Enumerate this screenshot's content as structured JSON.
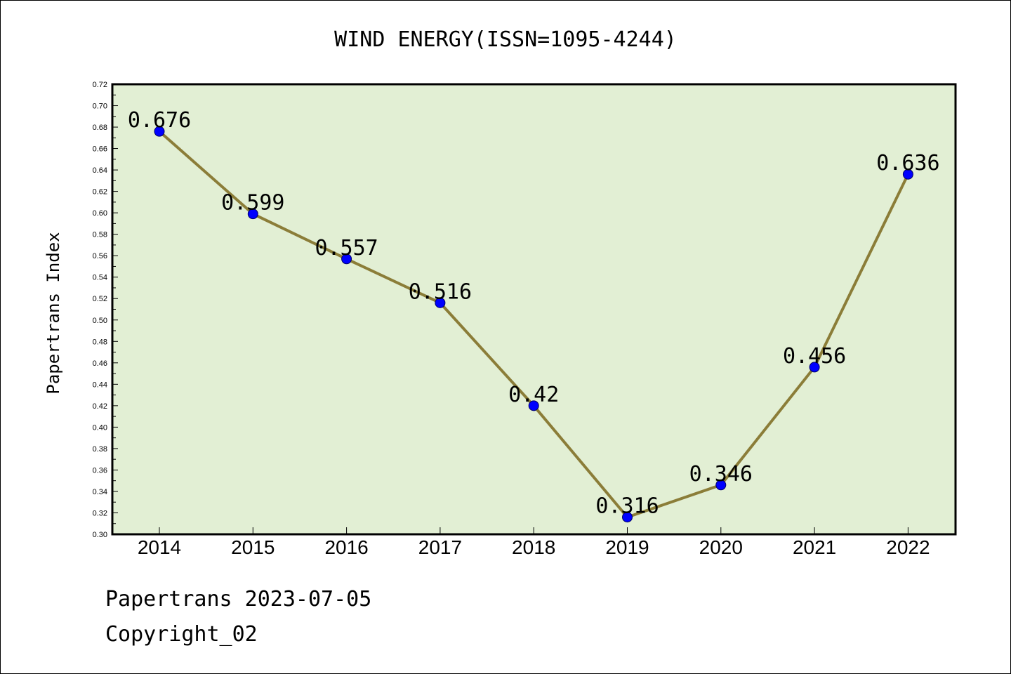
{
  "chart_data": {
    "type": "line",
    "title": "WIND ENERGY(ISSN=1095-4244)",
    "xlabel": "",
    "ylabel": "Papertrans Index",
    "categories": [
      "2014",
      "2015",
      "2016",
      "2017",
      "2018",
      "2019",
      "2020",
      "2021",
      "2022"
    ],
    "series": [
      {
        "values": [
          0.676,
          0.599,
          0.557,
          0.516,
          0.42,
          0.316,
          0.346,
          0.456,
          0.636
        ],
        "data_labels": [
          "0.676",
          "0.599",
          "0.557",
          "0.516",
          "0.42",
          "0.316",
          "0.346",
          "0.456",
          "0.636"
        ]
      }
    ],
    "ylim": [
      0.3,
      0.72
    ],
    "yticks": [
      "0.30",
      "0.32",
      "0.34",
      "0.36",
      "0.38",
      "0.40",
      "0.42",
      "0.44",
      "0.46",
      "0.48",
      "0.50",
      "0.52",
      "0.54",
      "0.56",
      "0.58",
      "0.60",
      "0.62",
      "0.64",
      "0.66",
      "0.68",
      "0.70",
      "0.72"
    ],
    "grid": false,
    "legend": "none",
    "colors": {
      "plot_background": "#e2efd4",
      "line": "#8b7d38",
      "marker": "#0000ff"
    }
  },
  "footer": {
    "line1": "Papertrans 2023-07-05",
    "line2": "Copyright_02"
  }
}
